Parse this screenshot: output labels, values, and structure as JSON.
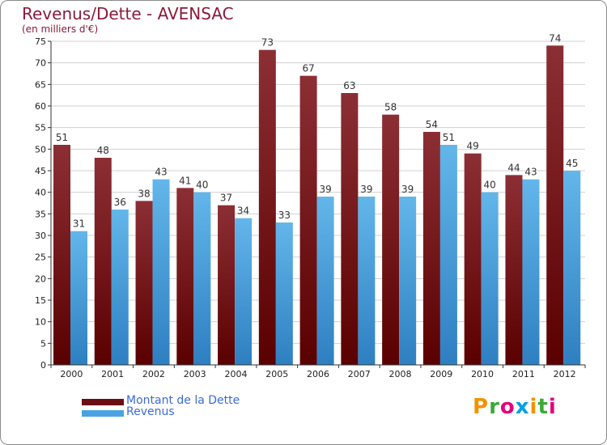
{
  "title": "Revenus/Dette - AVENSAC",
  "subtitle": "(en milliers d'€)",
  "logo": "Proxiti",
  "colors": {
    "dette_top": "#8c2f35",
    "dette_bottom": "#5a0000",
    "revenus_top": "#63b6ea",
    "revenus_bottom": "#2e7fc1",
    "grid": "#d0d0d0",
    "title": "#8b1a3c",
    "legend_text": "#3b6bd6"
  },
  "legend": [
    {
      "label": "Montant de la Dette",
      "color": "#6b0f14"
    },
    {
      "label": "Revenus",
      "color": "#4aa3e0"
    }
  ],
  "chart_data": {
    "type": "bar",
    "title": "Revenus/Dette - AVENSAC",
    "subtitle": "(en milliers d'€)",
    "xlabel": "",
    "ylabel": "",
    "ylim": [
      0,
      75
    ],
    "ystep": 5,
    "grid": true,
    "legend_position": "bottom-left",
    "categories": [
      "2000",
      "2001",
      "2002",
      "2003",
      "2004",
      "2005",
      "2006",
      "2007",
      "2008",
      "2009",
      "2010",
      "2011",
      "2012"
    ],
    "series": [
      {
        "name": "Montant de la Dette",
        "values": [
          51,
          48,
          38,
          41,
          37,
          73,
          67,
          63,
          58,
          54,
          49,
          44,
          74
        ]
      },
      {
        "name": "Revenus",
        "values": [
          31,
          36,
          43,
          40,
          34,
          33,
          39,
          39,
          39,
          51,
          40,
          43,
          45
        ]
      }
    ]
  }
}
